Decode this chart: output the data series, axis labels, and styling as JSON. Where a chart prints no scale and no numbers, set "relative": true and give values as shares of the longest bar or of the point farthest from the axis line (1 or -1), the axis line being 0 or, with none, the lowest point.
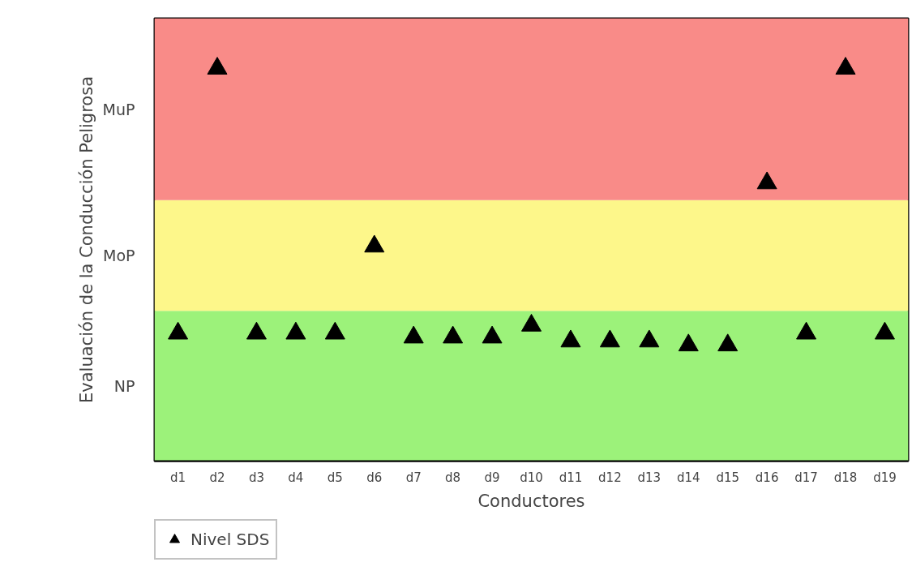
{
  "chart_data": {
    "type": "scatter",
    "xlabel": "Conductores",
    "ylabel": "Evaluación de la Conducción Peligrosa",
    "categories": [
      "d1",
      "d2",
      "d3",
      "d4",
      "d5",
      "d6",
      "d7",
      "d8",
      "d9",
      "d10",
      "d11",
      "d12",
      "d13",
      "d14",
      "d15",
      "d16",
      "d17",
      "d18",
      "d19"
    ],
    "relative": true,
    "series": [
      {
        "name": "Nivel SDS",
        "color": "#000000",
        "values": [
          0.33,
          1,
          0.33,
          0.33,
          0.33,
          0.55,
          0.32,
          0.32,
          0.32,
          0.35,
          0.31,
          0.31,
          0.31,
          0.3,
          0.3,
          0.71,
          0.33,
          1,
          0.33
        ]
      }
    ],
    "marker": "triangle",
    "bands": [
      {
        "axis": "y",
        "from": 0,
        "to": 0.38,
        "color": "#9cf27a",
        "label": "NP"
      },
      {
        "axis": "y",
        "from": 0.38,
        "to": 0.66,
        "color": "#fdf78a",
        "label": "MoP"
      },
      {
        "axis": "y",
        "from": 0.66,
        "to": 1.12,
        "color": "#f98b88",
        "label": "MuP"
      }
    ],
    "grid": false,
    "legend": "bottom left"
  }
}
